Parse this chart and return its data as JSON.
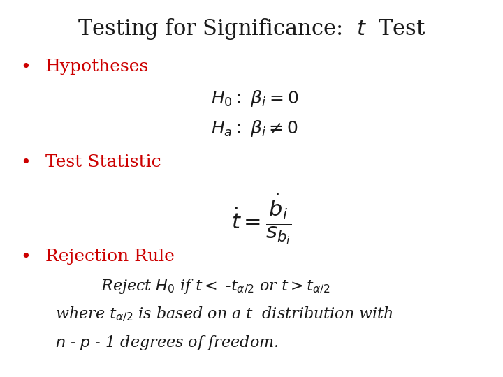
{
  "background_color": "#ffffff",
  "title": "Testing for Significance:  $t$  Test",
  "title_fontsize": 22,
  "title_color": "#1a1a1a",
  "bullet_color": "#cc0000",
  "text_color": "#1a1a1a",
  "bullet1": "Hypotheses",
  "bullet2": "Test Statistic",
  "bullet3": "Rejection Rule",
  "main_fontsize": 16,
  "formula_fontsize": 18,
  "small_fontsize": 15
}
